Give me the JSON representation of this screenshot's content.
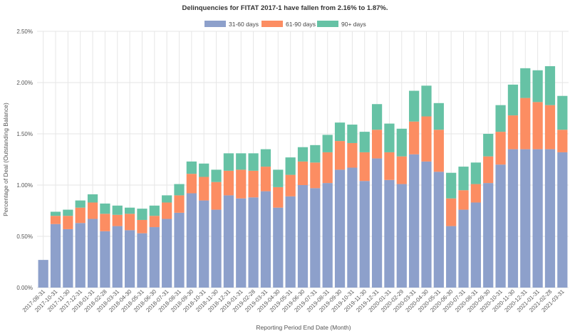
{
  "chart_data": {
    "type": "bar",
    "stacked": true,
    "title": "Delinquencies for FITAT 2017-1 have fallen from 2.16% to 1.87%.",
    "xlabel": "Reporting Period End Date (Month)",
    "ylabel": "Percentage of Deal (Outstanding Balance)",
    "ylim": [
      0,
      2.5
    ],
    "yticks": [
      "0.00%",
      "0.50%",
      "1.00%",
      "1.50%",
      "2.00%",
      "2.50%"
    ],
    "grid": true,
    "legend_position": "top-center",
    "categories": [
      "2017-08-31",
      "2017-10-31",
      "2017-11-30",
      "2017-12-31",
      "2018-01-31",
      "2018-02-28",
      "2018-03-31",
      "2018-04-30",
      "2018-05-31",
      "2018-06-30",
      "2018-07-31",
      "2018-08-31",
      "2018-09-30",
      "2018-10-31",
      "2018-11-30",
      "2018-12-31",
      "2019-01-31",
      "2019-02-28",
      "2019-03-31",
      "2019-04-30",
      "2019-05-31",
      "2019-06-30",
      "2019-07-31",
      "2019-08-31",
      "2019-09-30",
      "2019-10-31",
      "2019-11-30",
      "2019-12-31",
      "2020-01-31",
      "2020-02-29",
      "2020-03-31",
      "2020-04-30",
      "2020-05-31",
      "2020-06-30",
      "2020-07-31",
      "2020-08-31",
      "2020-09-30",
      "2020-10-31",
      "2020-11-30",
      "2020-12-31",
      "2021-01-31",
      "2021-02-28",
      "2021-03-31"
    ],
    "series": [
      {
        "name": "31-60 days",
        "color": "#8da0cb",
        "values": [
          0.27,
          0.62,
          0.57,
          0.63,
          0.67,
          0.55,
          0.6,
          0.56,
          0.53,
          0.59,
          0.67,
          0.73,
          0.92,
          0.85,
          0.76,
          0.9,
          0.87,
          0.88,
          0.94,
          0.78,
          0.89,
          1.0,
          0.97,
          1.02,
          1.15,
          1.17,
          1.04,
          1.26,
          1.05,
          1.01,
          1.3,
          1.23,
          1.13,
          0.6,
          0.76,
          0.83,
          1.02,
          1.2,
          1.35,
          1.35,
          1.35,
          1.35,
          1.32
        ]
      },
      {
        "name": "61-90 days",
        "color": "#fc8d62",
        "values": [
          0.0,
          0.08,
          0.13,
          0.15,
          0.16,
          0.17,
          0.11,
          0.16,
          0.13,
          0.11,
          0.16,
          0.17,
          0.19,
          0.23,
          0.27,
          0.24,
          0.28,
          0.26,
          0.24,
          0.2,
          0.21,
          0.23,
          0.25,
          0.3,
          0.28,
          0.24,
          0.28,
          0.28,
          0.27,
          0.27,
          0.32,
          0.44,
          0.41,
          0.27,
          0.19,
          0.18,
          0.26,
          0.32,
          0.33,
          0.5,
          0.46,
          0.43,
          0.22
        ]
      },
      {
        "name": "90+ days",
        "color": "#66c2a5",
        "values": [
          0.0,
          0.04,
          0.06,
          0.07,
          0.08,
          0.1,
          0.09,
          0.06,
          0.11,
          0.1,
          0.07,
          0.11,
          0.12,
          0.13,
          0.12,
          0.17,
          0.16,
          0.17,
          0.17,
          0.17,
          0.17,
          0.14,
          0.17,
          0.17,
          0.18,
          0.18,
          0.2,
          0.25,
          0.28,
          0.27,
          0.3,
          0.3,
          0.26,
          0.25,
          0.23,
          0.21,
          0.22,
          0.26,
          0.3,
          0.29,
          0.31,
          0.38,
          0.33
        ]
      }
    ]
  }
}
